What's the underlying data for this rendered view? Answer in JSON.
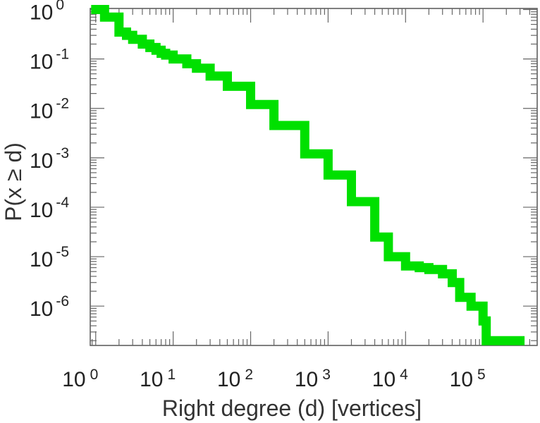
{
  "chart_data": {
    "type": "line",
    "title": "",
    "xlabel": "Right degree (d) [vertices]",
    "ylabel": "P(x ≥ d)",
    "x_scale": "log",
    "y_scale": "log",
    "xlim": [
      0.85,
      500000
    ],
    "ylim": [
      1.6e-07,
      1.05
    ],
    "grid": false,
    "legend": "none",
    "x_ticks": [
      {
        "base": "10",
        "exp": "0"
      },
      {
        "base": "10",
        "exp": "1"
      },
      {
        "base": "10",
        "exp": "2"
      },
      {
        "base": "10",
        "exp": "3"
      },
      {
        "base": "10",
        "exp": "4"
      },
      {
        "base": "10",
        "exp": "5"
      }
    ],
    "y_ticks": [
      {
        "base": "10",
        "exp": "0"
      },
      {
        "base": "10",
        "exp": "-1"
      },
      {
        "base": "10",
        "exp": "-2"
      },
      {
        "base": "10",
        "exp": "-3"
      },
      {
        "base": "10",
        "exp": "-4"
      },
      {
        "base": "10",
        "exp": "-5"
      },
      {
        "base": "10",
        "exp": "-6"
      }
    ],
    "series": [
      {
        "color": "#00e000",
        "x": [
          1,
          1.3,
          2,
          2.5,
          3,
          4,
          5,
          6,
          7,
          8,
          10,
          15,
          20,
          30,
          50,
          100,
          200,
          500,
          1000,
          2000,
          4000,
          6000,
          10000,
          15000,
          20000,
          30000,
          40000,
          50000,
          70000,
          100000,
          110000,
          200000,
          300000
        ],
        "y": [
          1.0,
          0.7,
          0.35,
          0.3,
          0.25,
          0.2,
          0.17,
          0.15,
          0.13,
          0.12,
          0.1,
          0.08,
          0.065,
          0.045,
          0.028,
          0.012,
          0.0045,
          0.0012,
          0.00045,
          0.00013,
          2.5e-05,
          1e-05,
          6.5e-06,
          6e-06,
          5.5e-06,
          4.5e-06,
          3e-06,
          1.5e-06,
          1e-06,
          5e-07,
          2e-07,
          2e-07,
          2e-07
        ]
      }
    ]
  }
}
